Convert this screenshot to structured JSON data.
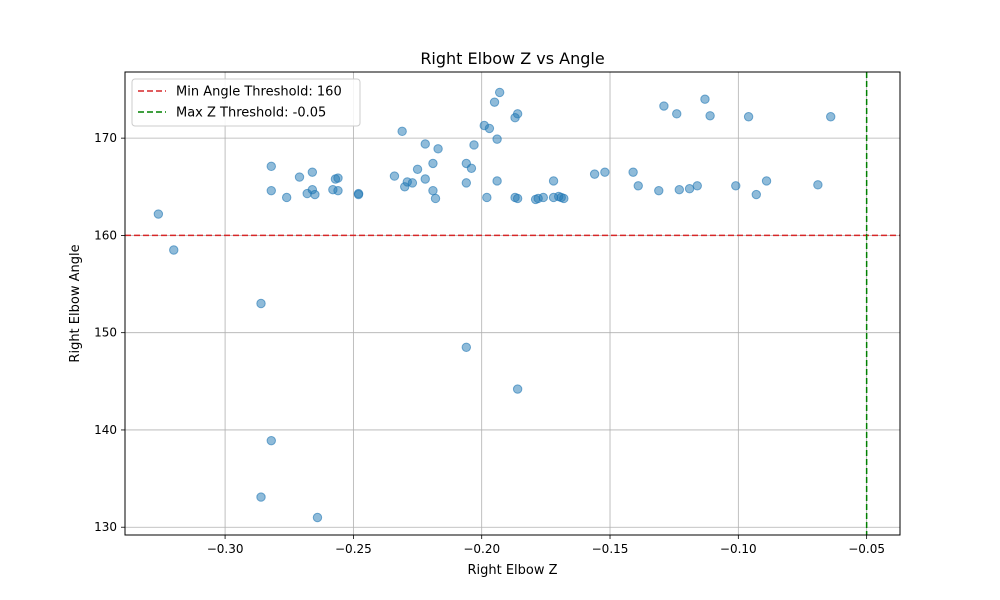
{
  "chart_data": {
    "type": "scatter",
    "title": "Right Elbow Z vs Angle",
    "xlabel": "Right Elbow Z",
    "ylabel": "Right Elbow Angle",
    "xlim": [
      -0.339,
      -0.037
    ],
    "ylim": [
      129.2,
      176.8
    ],
    "xticks": [
      -0.3,
      -0.25,
      -0.2,
      -0.15,
      -0.1,
      -0.05
    ],
    "xtick_labels": [
      "−0.30",
      "−0.25",
      "−0.20",
      "−0.15",
      "−0.10",
      "−0.05"
    ],
    "yticks": [
      130,
      140,
      150,
      160,
      170
    ],
    "ytick_labels": [
      "130",
      "140",
      "150",
      "160",
      "170"
    ],
    "grid": true,
    "legend_position": "top-left",
    "point_color": "#1f77b4",
    "points": [
      [
        -0.326,
        162.2
      ],
      [
        -0.32,
        158.5
      ],
      [
        -0.286,
        153.0
      ],
      [
        -0.286,
        133.1
      ],
      [
        -0.282,
        138.9
      ],
      [
        -0.282,
        167.1
      ],
      [
        -0.282,
        164.6
      ],
      [
        -0.276,
        163.9
      ],
      [
        -0.271,
        166.0
      ],
      [
        -0.268,
        164.3
      ],
      [
        -0.266,
        164.7
      ],
      [
        -0.266,
        166.5
      ],
      [
        -0.265,
        164.2
      ],
      [
        -0.264,
        131.0
      ],
      [
        -0.258,
        164.7
      ],
      [
        -0.257,
        165.8
      ],
      [
        -0.256,
        165.9
      ],
      [
        -0.256,
        164.6
      ],
      [
        -0.248,
        164.3
      ],
      [
        -0.248,
        164.2
      ],
      [
        -0.234,
        166.1
      ],
      [
        -0.231,
        170.7
      ],
      [
        -0.23,
        165.0
      ],
      [
        -0.229,
        165.5
      ],
      [
        -0.227,
        165.4
      ],
      [
        -0.225,
        166.8
      ],
      [
        -0.222,
        169.4
      ],
      [
        -0.222,
        165.8
      ],
      [
        -0.219,
        167.4
      ],
      [
        -0.219,
        164.6
      ],
      [
        -0.218,
        163.8
      ],
      [
        -0.217,
        168.9
      ],
      [
        -0.206,
        148.5
      ],
      [
        -0.206,
        165.4
      ],
      [
        -0.206,
        167.4
      ],
      [
        -0.204,
        166.9
      ],
      [
        -0.203,
        169.3
      ],
      [
        -0.199,
        171.3
      ],
      [
        -0.198,
        163.9
      ],
      [
        -0.197,
        171.0
      ],
      [
        -0.195,
        173.7
      ],
      [
        -0.194,
        169.9
      ],
      [
        -0.194,
        165.6
      ],
      [
        -0.193,
        174.7
      ],
      [
        -0.187,
        172.1
      ],
      [
        -0.186,
        172.5
      ],
      [
        -0.187,
        163.9
      ],
      [
        -0.186,
        163.8
      ],
      [
        -0.186,
        144.2
      ],
      [
        -0.179,
        163.7
      ],
      [
        -0.178,
        163.8
      ],
      [
        -0.176,
        163.9
      ],
      [
        -0.172,
        165.6
      ],
      [
        -0.172,
        163.9
      ],
      [
        -0.17,
        164.0
      ],
      [
        -0.169,
        163.9
      ],
      [
        -0.168,
        163.8
      ],
      [
        -0.156,
        166.3
      ],
      [
        -0.152,
        166.5
      ],
      [
        -0.141,
        166.5
      ],
      [
        -0.139,
        165.1
      ],
      [
        -0.131,
        164.6
      ],
      [
        -0.129,
        173.3
      ],
      [
        -0.124,
        172.5
      ],
      [
        -0.123,
        164.7
      ],
      [
        -0.119,
        164.8
      ],
      [
        -0.116,
        165.1
      ],
      [
        -0.113,
        174.0
      ],
      [
        -0.111,
        172.3
      ],
      [
        -0.101,
        165.1
      ],
      [
        -0.096,
        172.2
      ],
      [
        -0.093,
        164.2
      ],
      [
        -0.089,
        165.6
      ],
      [
        -0.069,
        165.2
      ],
      [
        -0.064,
        172.2
      ]
    ],
    "threshold_lines": [
      {
        "orientation": "horizontal",
        "value": 160,
        "color": "#d62728",
        "label": "Min Angle Threshold: 160"
      },
      {
        "orientation": "vertical",
        "value": -0.05,
        "color": "#008000",
        "label": "Max Z Threshold: -0.05"
      }
    ]
  }
}
